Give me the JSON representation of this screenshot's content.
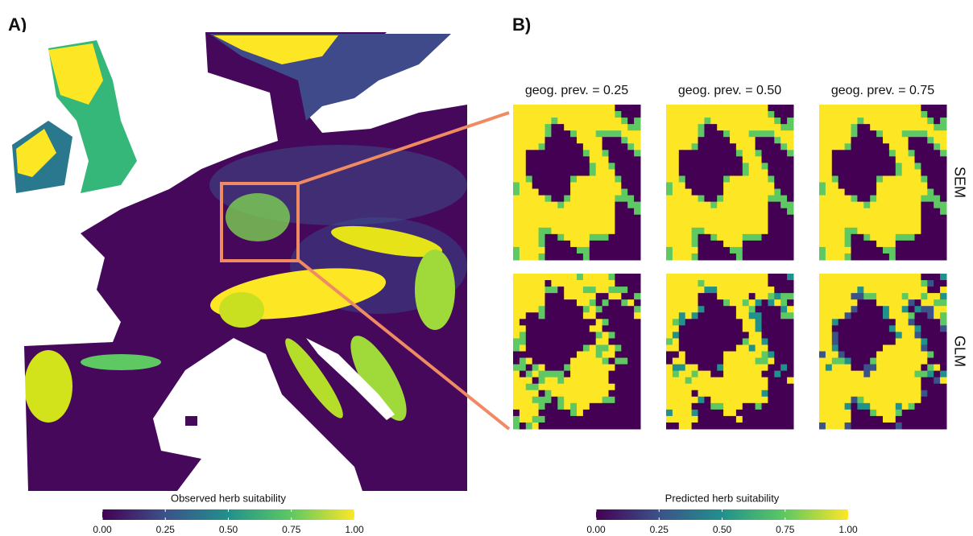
{
  "panel_a": {
    "label": "A)",
    "colorbar": {
      "title": "Observed herb suitability",
      "lim": [
        0,
        1
      ],
      "colormap": [
        "#440154",
        "#3b528b",
        "#21918c",
        "#5ec962",
        "#fde725"
      ],
      "ticks": [
        {
          "value": 0,
          "label": "0.00"
        },
        {
          "value": 0.25,
          "label": "0.25"
        },
        {
          "value": 0.5,
          "label": "0.50"
        },
        {
          "value": 0.75,
          "label": "0.75"
        },
        {
          "value": 1,
          "label": "1.00"
        }
      ]
    }
  },
  "panel_b": {
    "label": "B)",
    "columns": [
      "geog. prev. = 0.25",
      "geog. prev. = 0.50",
      "geog. prev. = 0.75"
    ],
    "rows": [
      "SEM",
      "GLM"
    ],
    "colorbar": {
      "title": "Predicted herb suitability",
      "lim": [
        0,
        1
      ],
      "colormap": [
        "#440154",
        "#3b528b",
        "#21918c",
        "#5ec962",
        "#fde725"
      ],
      "ticks": [
        {
          "value": 0,
          "label": "0.00"
        },
        {
          "value": 0.25,
          "label": "0.25"
        },
        {
          "value": 0.5,
          "label": "0.50"
        },
        {
          "value": 0.75,
          "label": "0.75"
        },
        {
          "value": 1,
          "label": "1.00"
        }
      ]
    }
  }
}
